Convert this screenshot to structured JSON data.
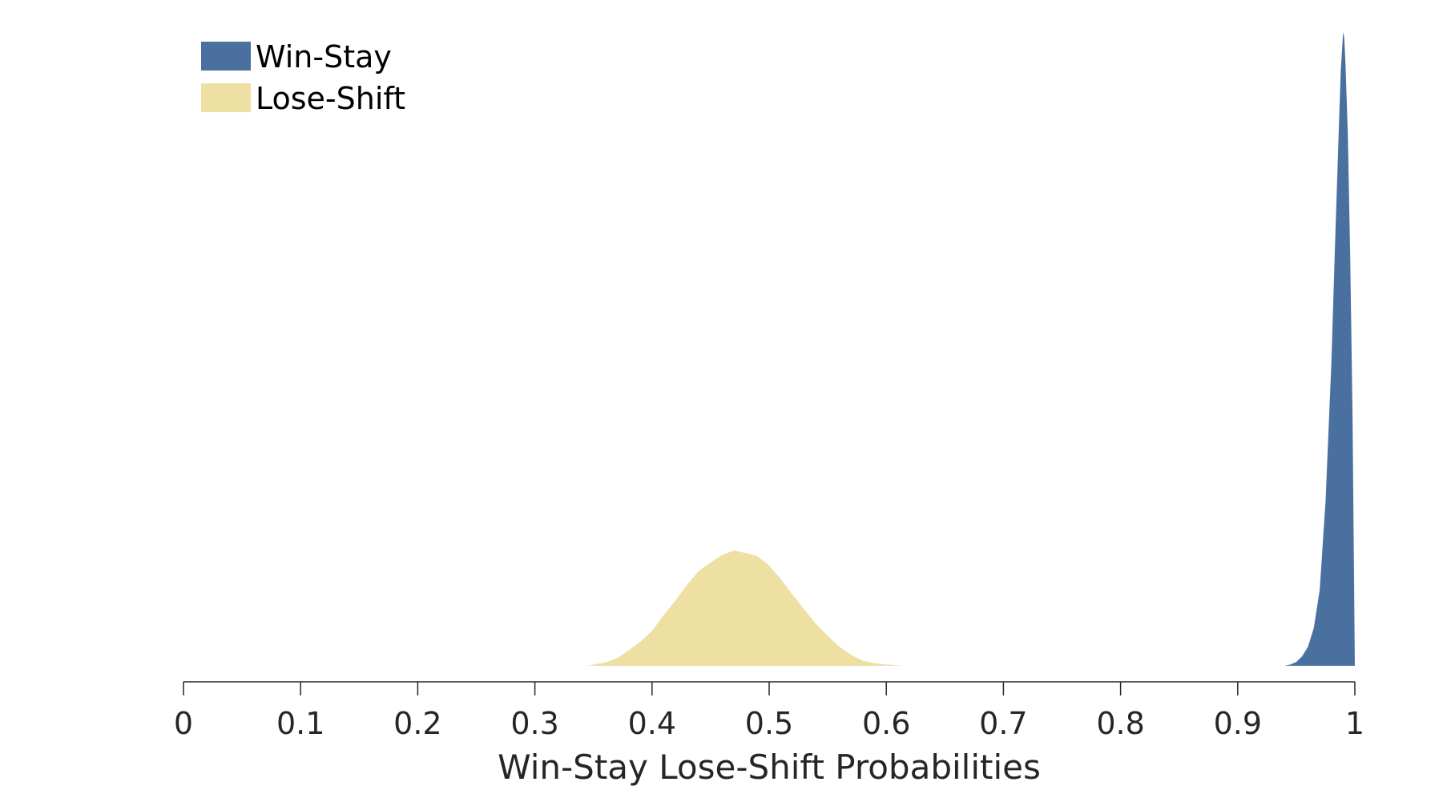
{
  "chart_data": {
    "type": "area",
    "xlabel": "Win-Stay Lose-Shift Probabilities",
    "ylabel": "",
    "xlim": [
      0,
      1
    ],
    "ylim": [
      0,
      1
    ],
    "x_ticks": [
      0,
      0.1,
      0.2,
      0.3,
      0.4,
      0.5,
      0.6,
      0.7,
      0.8,
      0.9,
      1
    ],
    "x_tick_labels": [
      "0",
      "0.1",
      "0.2",
      "0.3",
      "0.4",
      "0.5",
      "0.6",
      "0.7",
      "0.8",
      "0.9",
      "1"
    ],
    "y_axis_visible": false,
    "grid": false,
    "legend": {
      "placement": "top-left",
      "entries": [
        "Win-Stay",
        "Lose-Shift"
      ]
    },
    "series": [
      {
        "name": "Win-Stay",
        "color": "#4a70a0",
        "x": [
          0.94,
          0.945,
          0.95,
          0.955,
          0.96,
          0.965,
          0.97,
          0.975,
          0.98,
          0.983,
          0.986,
          0.988,
          0.99,
          0.991,
          0.992,
          0.994,
          0.996,
          0.998,
          1.0
        ],
        "y": [
          0.0,
          0.002,
          0.006,
          0.015,
          0.03,
          0.06,
          0.12,
          0.26,
          0.48,
          0.66,
          0.83,
          0.94,
          1.0,
          0.99,
          0.95,
          0.84,
          0.65,
          0.4,
          0.0
        ]
      },
      {
        "name": "Lose-Shift",
        "color": "#eedfa3",
        "x": [
          0.345,
          0.35,
          0.36,
          0.37,
          0.38,
          0.39,
          0.4,
          0.41,
          0.42,
          0.43,
          0.44,
          0.45,
          0.46,
          0.47,
          0.475,
          0.48,
          0.49,
          0.5,
          0.51,
          0.52,
          0.53,
          0.54,
          0.55,
          0.56,
          0.57,
          0.58,
          0.59,
          0.6,
          0.615
        ],
        "y": [
          0.0,
          0.002,
          0.005,
          0.012,
          0.024,
          0.038,
          0.055,
          0.08,
          0.103,
          0.128,
          0.15,
          0.163,
          0.175,
          0.182,
          0.18,
          0.178,
          0.173,
          0.158,
          0.137,
          0.112,
          0.089,
          0.066,
          0.047,
          0.03,
          0.017,
          0.008,
          0.004,
          0.002,
          0.0
        ]
      }
    ]
  }
}
